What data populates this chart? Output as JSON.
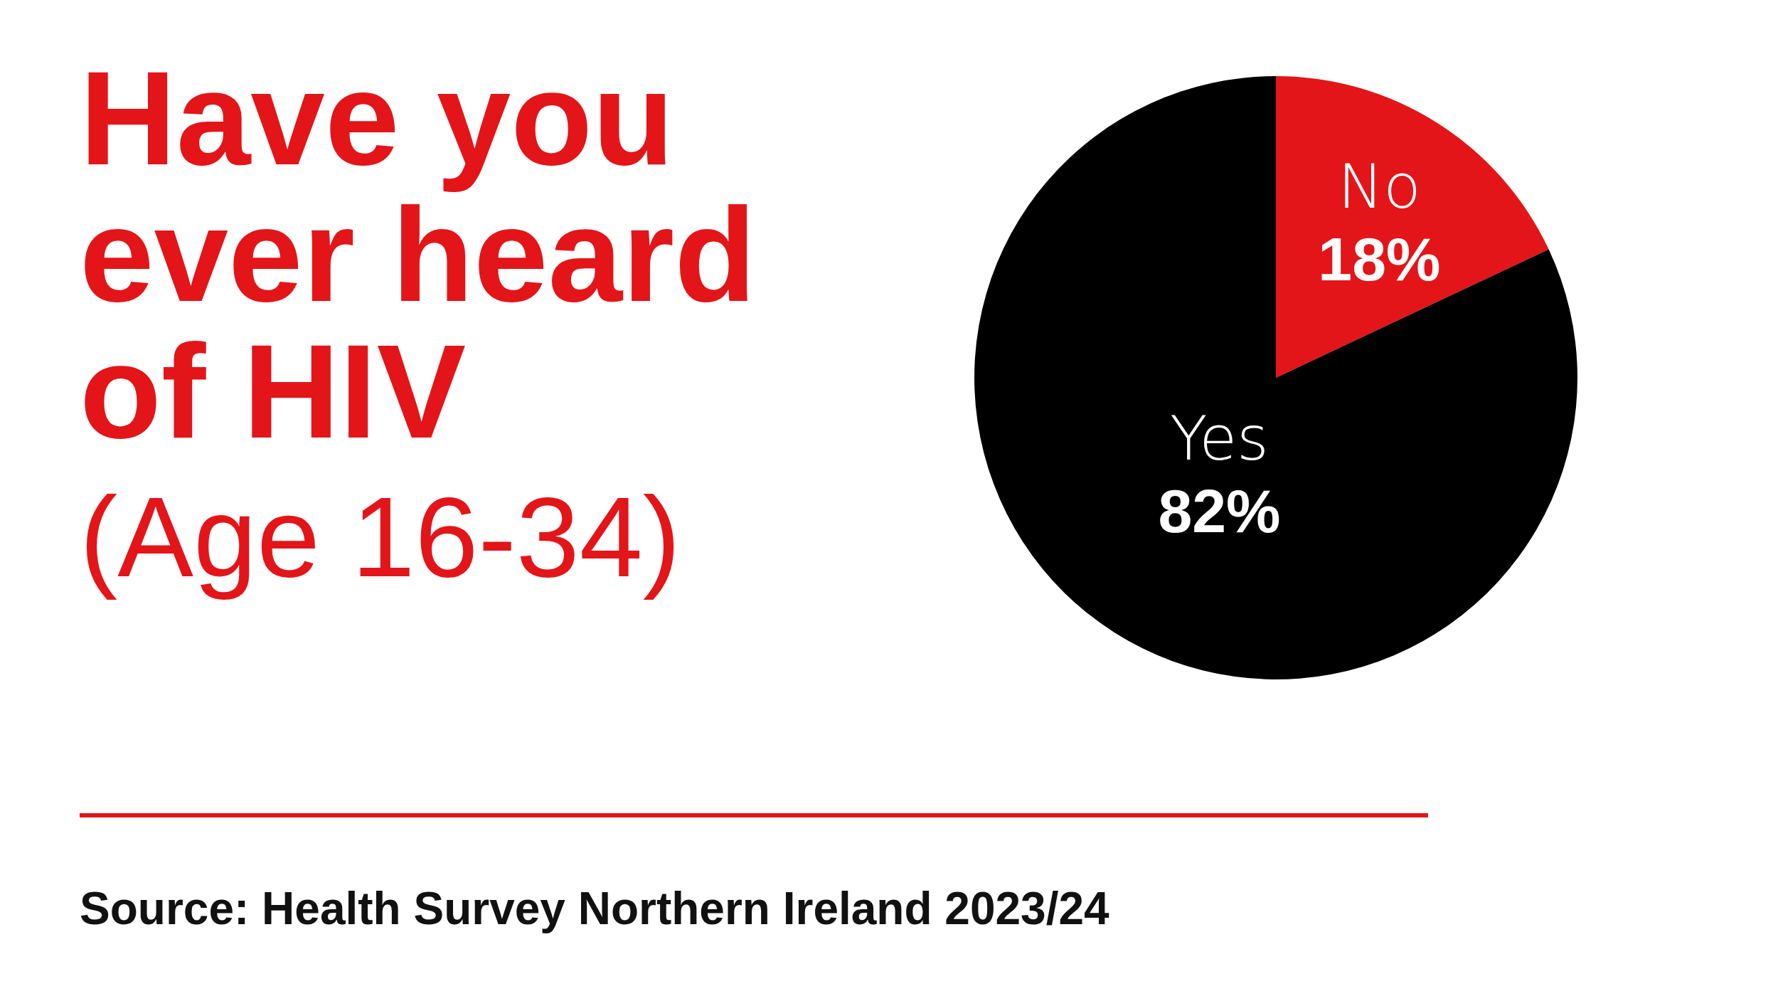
{
  "chart_data": {
    "type": "pie",
    "title": "Have you ever heard of HIV",
    "subtitle": "(Age 16-34)",
    "categories": [
      "No",
      "Yes"
    ],
    "values": [
      18,
      82
    ],
    "colors": [
      "#e31519",
      "#000000"
    ],
    "value_labels": [
      "18%",
      "82%"
    ],
    "annotations": [
      "Source: Health Survey Northern Ireland 2023/24"
    ]
  }
}
